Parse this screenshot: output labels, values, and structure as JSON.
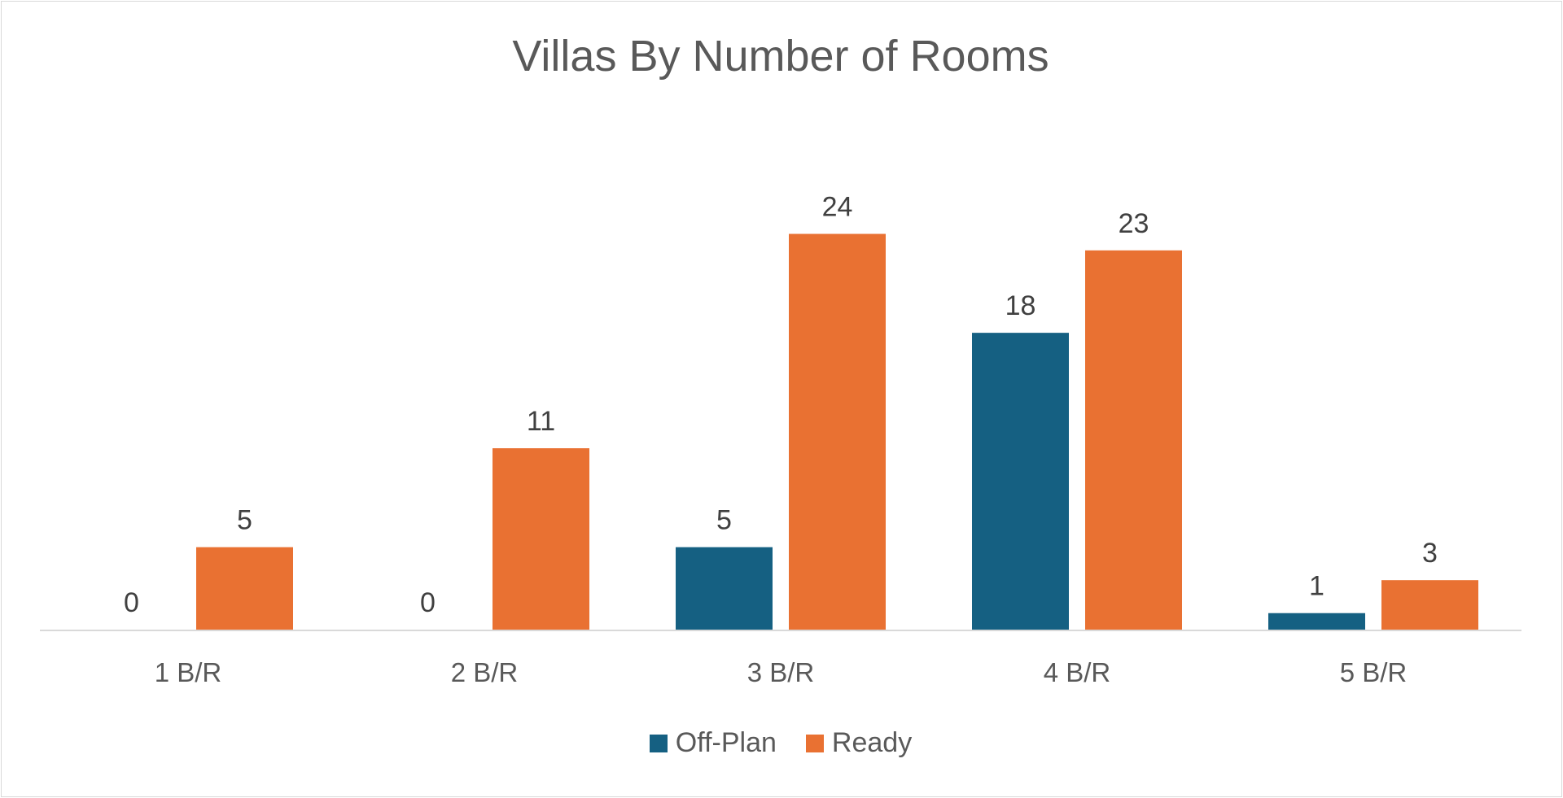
{
  "chart_data": {
    "type": "bar",
    "title": "Villas By Number of Rooms",
    "categories": [
      "1 B/R",
      "2 B/R",
      "3 B/R",
      "4 B/R",
      "5 B/R"
    ],
    "series": [
      {
        "name": "Off-Plan",
        "values": [
          0,
          0,
          5,
          18,
          1
        ],
        "color": "#156082"
      },
      {
        "name": "Ready",
        "values": [
          5,
          11,
          24,
          23,
          3
        ],
        "color": "#E97132"
      }
    ],
    "xlabel": "",
    "ylabel": "",
    "ylim": [
      0,
      24
    ],
    "grid": false,
    "data_labels": true,
    "legend_position": "bottom"
  }
}
